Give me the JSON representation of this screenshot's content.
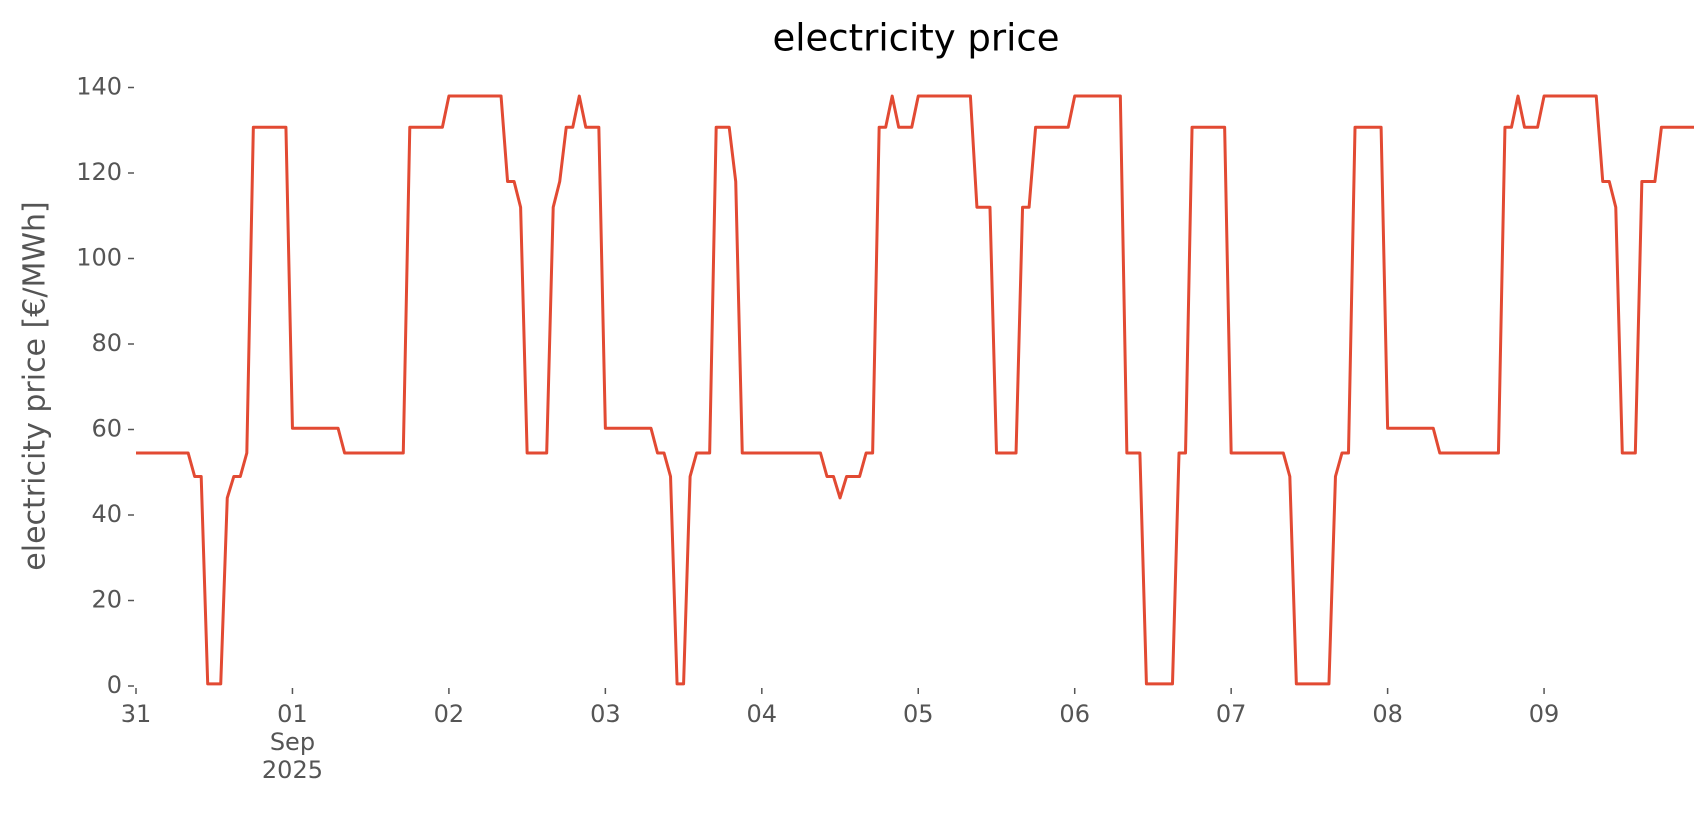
{
  "chart_data": {
    "type": "line",
    "title": "electricity price",
    "ylabel": "electricity price [€/MWh]",
    "x": [
      0,
      8,
      9,
      10,
      11,
      13,
      14,
      15,
      16,
      17,
      18,
      23,
      24,
      31,
      32,
      41,
      42,
      47,
      48,
      56,
      57,
      58,
      59,
      60,
      63,
      64,
      65,
      66,
      67,
      68,
      69,
      71,
      72,
      79,
      80,
      81,
      82,
      83,
      84,
      85,
      86,
      88,
      89,
      91,
      92,
      93,
      105,
      106,
      107,
      108,
      109,
      111,
      112,
      113,
      114,
      115,
      116,
      117,
      119,
      120,
      128,
      129,
      131,
      132,
      135,
      136,
      137,
      138,
      143,
      144,
      151,
      152,
      154,
      155,
      159,
      160,
      161,
      162,
      167,
      168,
      176,
      177,
      178,
      183,
      184,
      185,
      186,
      187,
      191,
      192,
      199,
      200,
      209,
      210,
      211,
      212,
      213,
      215,
      216,
      224,
      225,
      226,
      227,
      228,
      230,
      231,
      233,
      234,
      239
    ],
    "series": [
      {
        "name": "electricity price",
        "color": "#e24a33",
        "values": [
          54.5,
          54.5,
          49,
          49,
          0.5,
          0.5,
          44,
          49,
          49,
          54.5,
          130.7,
          130.7,
          60.3,
          60.3,
          54.5,
          54.5,
          130.7,
          130.7,
          138,
          138,
          118,
          118,
          112,
          54.5,
          54.5,
          112,
          118,
          130.7,
          130.7,
          138,
          130.7,
          130.7,
          60.3,
          60.3,
          54.5,
          54.5,
          49,
          0.5,
          0.5,
          49,
          54.5,
          54.5,
          130.7,
          130.7,
          118,
          54.5,
          54.5,
          49,
          49,
          44,
          49,
          49,
          54.5,
          54.5,
          130.7,
          130.7,
          138,
          130.7,
          130.7,
          138,
          138,
          112,
          112,
          54.5,
          54.5,
          112,
          112,
          130.7,
          130.7,
          138,
          138,
          54.5,
          54.5,
          0.5,
          0.5,
          54.5,
          54.5,
          130.7,
          130.7,
          54.5,
          54.5,
          49,
          0.5,
          0.5,
          49,
          54.5,
          54.5,
          130.7,
          130.7,
          60.3,
          60.3,
          54.5,
          54.5,
          130.7,
          130.7,
          138,
          130.7,
          130.7,
          138,
          138,
          118,
          118,
          112,
          54.5,
          54.5,
          118,
          118,
          130.7,
          130.7
        ]
      }
    ],
    "xlim": [
      0,
      239
    ],
    "xticks": [
      {
        "value": 0,
        "label": "31"
      },
      {
        "value": 24,
        "label": "01\nSep\n2025"
      },
      {
        "value": 48,
        "label": "02"
      },
      {
        "value": 72,
        "label": "03"
      },
      {
        "value": 96,
        "label": "04"
      },
      {
        "value": 120,
        "label": "05"
      },
      {
        "value": 144,
        "label": "06"
      },
      {
        "value": 168,
        "label": "07"
      },
      {
        "value": 192,
        "label": "08"
      },
      {
        "value": 216,
        "label": "09"
      }
    ],
    "ylim": [
      0,
      140
    ],
    "yticks": [
      0,
      20,
      40,
      60,
      80,
      100,
      120,
      140
    ],
    "grid": false
  }
}
